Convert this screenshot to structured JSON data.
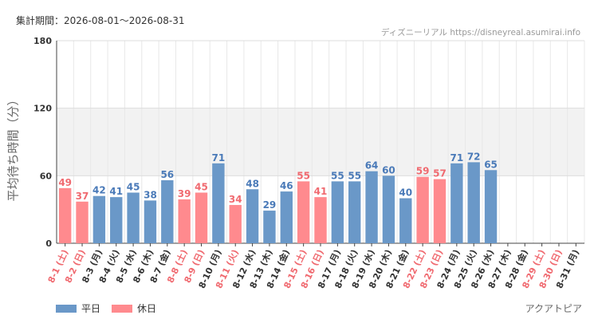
{
  "header": {
    "period": "集計期間：2026-08-01～2026-08-31",
    "source": "ディズニーリアル https://disneyreal.asumirai.info"
  },
  "colors": {
    "weekday": "#6a98c8",
    "holiday": "#ff8a8e",
    "weekday_text": "#4a7ab8",
    "holiday_text": "#f06a70"
  },
  "legend": {
    "weekday": "平日",
    "holiday": "休日"
  },
  "facility": "アクアトピア",
  "chart_data": {
    "type": "bar",
    "ylabel": "平均待ち時間（分）",
    "ylim": [
      0,
      180
    ],
    "yticks": [
      0,
      60,
      120,
      180
    ],
    "grid": true,
    "shaded_band": [
      60,
      120
    ],
    "categories": [
      "8-1 (土)",
      "8-2 (日)",
      "8-3 (月)",
      "8-4 (火)",
      "8-5 (水)",
      "8-6 (木)",
      "8-7 (金)",
      "8-8 (土)",
      "8-9 (日)",
      "8-10 (月)",
      "8-11 (火)",
      "8-12 (水)",
      "8-13 (木)",
      "8-14 (金)",
      "8-15 (土)",
      "8-16 (日)",
      "8-17 (月)",
      "8-18 (火)",
      "8-19 (水)",
      "8-20 (木)",
      "8-21 (金)",
      "8-22 (土)",
      "8-23 (日)",
      "8-24 (月)",
      "8-25 (火)",
      "8-26 (水)",
      "8-27 (木)",
      "8-28 (金)",
      "8-29 (土)",
      "8-30 (日)",
      "8-31 (月)"
    ],
    "values": [
      49,
      37,
      42,
      41,
      45,
      38,
      56,
      39,
      45,
      71,
      34,
      48,
      29,
      46,
      55,
      41,
      55,
      55,
      64,
      60,
      40,
      59,
      57,
      71,
      72,
      65,
      null,
      null,
      null,
      null,
      null
    ],
    "holiday": [
      true,
      true,
      false,
      false,
      false,
      false,
      false,
      true,
      true,
      false,
      true,
      false,
      false,
      false,
      true,
      true,
      false,
      false,
      false,
      false,
      false,
      true,
      true,
      false,
      false,
      false,
      false,
      false,
      true,
      true,
      false
    ]
  }
}
